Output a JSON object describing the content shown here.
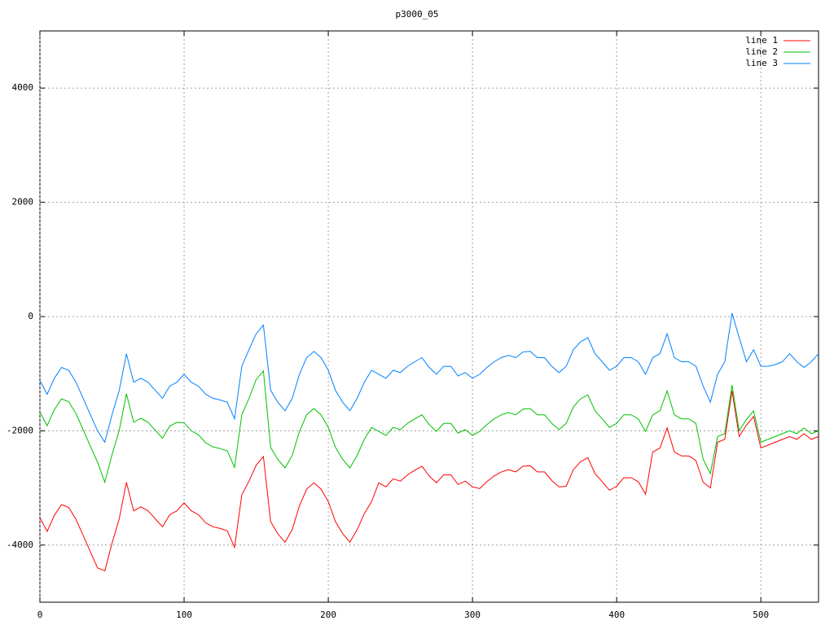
{
  "chart_data": {
    "type": "line",
    "title": "p3000_05",
    "x": [
      0,
      5,
      10,
      15,
      20,
      25,
      30,
      35,
      40,
      45,
      50,
      55,
      60,
      65,
      70,
      75,
      80,
      85,
      90,
      95,
      100,
      105,
      110,
      115,
      120,
      125,
      130,
      135,
      140,
      145,
      150,
      155,
      160,
      165,
      170,
      175,
      180,
      185,
      190,
      195,
      200,
      205,
      210,
      215,
      220,
      225,
      230,
      235,
      240,
      245,
      250,
      255,
      260,
      265,
      270,
      275,
      280,
      285,
      290,
      295,
      300,
      305,
      310,
      315,
      320,
      325,
      330,
      335,
      340,
      345,
      350,
      355,
      360,
      365,
      370,
      375,
      380,
      385,
      390,
      395,
      400,
      405,
      410,
      415,
      420,
      425,
      430,
      435,
      440,
      445,
      450,
      455,
      460,
      465,
      470,
      475,
      480,
      485,
      490,
      495,
      500,
      505,
      510,
      515,
      520,
      525,
      530,
      535,
      540
    ],
    "series": [
      {
        "name": "line 1",
        "color": "#ff0000",
        "values": [
          -3520,
          -3760,
          -3480,
          -3290,
          -3340,
          -3550,
          -3830,
          -4120,
          -4400,
          -4450,
          -3970,
          -3540,
          -2900,
          -3400,
          -3330,
          -3400,
          -3540,
          -3680,
          -3470,
          -3400,
          -3260,
          -3400,
          -3470,
          -3610,
          -3680,
          -3710,
          -3750,
          -4040,
          -3120,
          -2880,
          -2600,
          -2450,
          -3590,
          -3800,
          -3950,
          -3730,
          -3310,
          -3020,
          -2910,
          -3020,
          -3240,
          -3590,
          -3800,
          -3950,
          -3730,
          -3450,
          -3240,
          -2910,
          -2980,
          -2840,
          -2880,
          -2770,
          -2690,
          -2620,
          -2790,
          -2910,
          -2770,
          -2770,
          -2940,
          -2880,
          -2980,
          -3010,
          -2890,
          -2790,
          -2720,
          -2680,
          -2720,
          -2620,
          -2610,
          -2720,
          -2720,
          -2870,
          -2980,
          -2970,
          -2680,
          -2540,
          -2470,
          -2750,
          -2890,
          -3040,
          -2970,
          -2820,
          -2820,
          -2890,
          -3110,
          -2370,
          -2300,
          -1950,
          -2370,
          -2440,
          -2440,
          -2520,
          -2900,
          -3000,
          -2200,
          -2150,
          -1300,
          -2100,
          -1900,
          -1750,
          -2300,
          -2250,
          -2200,
          -2150,
          -2100,
          -2150,
          -2050,
          -2150,
          -2100
        ]
      },
      {
        "name": "line 2",
        "color": "#00c000",
        "values": [
          -1670,
          -1910,
          -1630,
          -1440,
          -1490,
          -1700,
          -1980,
          -2270,
          -2550,
          -2900,
          -2420,
          -1990,
          -1350,
          -1850,
          -1780,
          -1850,
          -1990,
          -2130,
          -1920,
          -1850,
          -1860,
          -2000,
          -2070,
          -2210,
          -2280,
          -2310,
          -2350,
          -2640,
          -1720,
          -1430,
          -1100,
          -950,
          -2290,
          -2500,
          -2650,
          -2430,
          -2010,
          -1720,
          -1610,
          -1720,
          -1940,
          -2290,
          -2500,
          -2650,
          -2430,
          -2150,
          -1940,
          -2010,
          -2080,
          -1940,
          -1980,
          -1870,
          -1790,
          -1720,
          -1890,
          -2010,
          -1870,
          -1870,
          -2040,
          -1980,
          -2080,
          -2010,
          -1890,
          -1790,
          -1720,
          -1680,
          -1720,
          -1620,
          -1610,
          -1720,
          -1720,
          -1870,
          -1980,
          -1870,
          -1580,
          -1440,
          -1370,
          -1650,
          -1790,
          -1940,
          -1870,
          -1720,
          -1720,
          -1790,
          -2010,
          -1720,
          -1650,
          -1300,
          -1720,
          -1790,
          -1790,
          -1870,
          -2500,
          -2750,
          -2100,
          -2050,
          -1200,
          -2000,
          -1800,
          -1650,
          -2200,
          -2150,
          -2100,
          -2050,
          -2000,
          -2050,
          -1950,
          -2050,
          -2000
        ]
      },
      {
        "name": "line 3",
        "color": "#0080ff",
        "values": [
          -1120,
          -1360,
          -1080,
          -890,
          -940,
          -1150,
          -1430,
          -1720,
          -2000,
          -2200,
          -1720,
          -1290,
          -650,
          -1150,
          -1080,
          -1150,
          -1290,
          -1430,
          -1220,
          -1150,
          -1010,
          -1150,
          -1220,
          -1360,
          -1430,
          -1460,
          -1500,
          -1790,
          -870,
          -580,
          -300,
          -150,
          -1290,
          -1500,
          -1650,
          -1430,
          -1010,
          -720,
          -610,
          -720,
          -940,
          -1290,
          -1500,
          -1650,
          -1430,
          -1150,
          -940,
          -1010,
          -1080,
          -940,
          -980,
          -870,
          -790,
          -720,
          -890,
          -1010,
          -870,
          -870,
          -1040,
          -980,
          -1080,
          -1010,
          -890,
          -790,
          -720,
          -680,
          -720,
          -620,
          -610,
          -720,
          -720,
          -870,
          -980,
          -870,
          -580,
          -440,
          -370,
          -650,
          -790,
          -940,
          -870,
          -720,
          -720,
          -790,
          -1010,
          -720,
          -650,
          -300,
          -720,
          -790,
          -790,
          -870,
          -1220,
          -1500,
          -1010,
          -790,
          60,
          -370,
          -790,
          -580,
          -870,
          -870,
          -840,
          -790,
          -650,
          -790,
          -890,
          -790,
          -650
        ]
      }
    ],
    "xlim": [
      0,
      540
    ],
    "xticks": [
      0,
      100,
      200,
      300,
      400,
      500
    ],
    "ylim": [
      -5000,
      5000
    ],
    "yticks": [
      -4000,
      -2000,
      0,
      2000,
      4000
    ],
    "grid": true,
    "legend": "top-right"
  }
}
